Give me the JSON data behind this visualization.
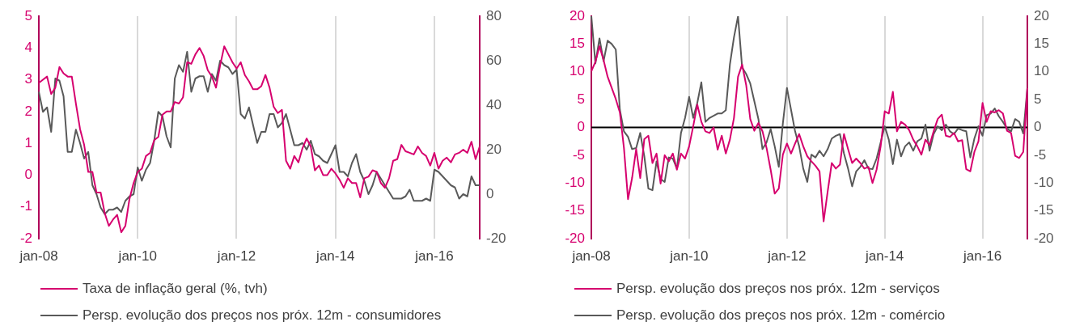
{
  "chart_data": [
    {
      "type": "line",
      "categories": [
        "jan-08",
        null,
        null,
        null,
        null,
        null,
        null,
        null,
        null,
        null,
        null,
        null,
        null,
        null,
        null,
        null,
        null,
        null,
        null,
        null,
        null,
        null,
        null,
        null,
        "jan-10",
        null,
        null,
        null,
        null,
        null,
        null,
        null,
        null,
        null,
        null,
        null,
        null,
        null,
        null,
        null,
        null,
        null,
        null,
        null,
        null,
        null,
        null,
        null,
        "jan-12",
        null,
        null,
        null,
        null,
        null,
        null,
        null,
        null,
        null,
        null,
        null,
        null,
        null,
        null,
        null,
        null,
        null,
        null,
        null,
        null,
        null,
        null,
        null,
        "jan-14",
        null,
        null,
        null,
        null,
        null,
        null,
        null,
        null,
        null,
        null,
        null,
        null,
        null,
        null,
        null,
        null,
        null,
        null,
        null,
        null,
        null,
        null,
        null,
        "jan-16",
        null,
        null,
        null,
        null,
        null,
        null,
        null,
        null,
        null,
        null,
        null
      ],
      "series": [
        {
          "name": "Taxa de inflação geral (%, tvh)",
          "color": "#d6006e",
          "values": [
            2.9,
            3.0,
            3.1,
            2.55,
            2.75,
            3.4,
            3.2,
            3.1,
            3.1,
            2.25,
            1.45,
            0.95,
            0.1,
            0.1,
            -0.55,
            -0.55,
            -1.2,
            -1.6,
            -1.4,
            -1.25,
            -1.8,
            -1.6,
            -0.75,
            -0.25,
            0.1,
            0.2,
            0.6,
            0.7,
            1.1,
            1.2,
            1.9,
            2.0,
            2.0,
            2.3,
            2.25,
            2.45,
            3.55,
            3.5,
            3.8,
            4.0,
            3.75,
            3.3,
            3.1,
            2.75,
            3.45,
            4.05,
            3.8,
            3.55,
            3.35,
            3.55,
            3.15,
            2.95,
            2.7,
            2.7,
            2.8,
            3.15,
            2.75,
            2.15,
            1.95,
            2.05,
            0.45,
            0.2,
            0.6,
            0.4,
            0.85,
            1.15,
            0.9,
            0.15,
            0.3,
            0.0,
            0.0,
            0.2,
            0.05,
            -0.15,
            -0.4,
            -0.1,
            -0.25,
            -0.25,
            -0.7,
            -0.1,
            -0.05,
            0.15,
            0.1,
            -0.25,
            -0.4,
            -0.1,
            0.45,
            0.5,
            0.95,
            0.75,
            0.7,
            0.65,
            0.9,
            0.7,
            0.6,
            0.3,
            0.7,
            0.2,
            0.45,
            0.55,
            0.4,
            0.65,
            0.7,
            0.8,
            0.7,
            1.05,
            0.5,
            0.9
          ]
        },
        {
          "name": "Persp. evolução dos preços nos próx. 12m - consumidores",
          "color": "#595959",
          "axis": "y2",
          "values": [
            46,
            37,
            39,
            28,
            52,
            51,
            44,
            19,
            19,
            29,
            23,
            16,
            19,
            4,
            0,
            -6,
            -9,
            -7,
            -7,
            -6,
            -8,
            -3,
            -1,
            0,
            12,
            6,
            11,
            14,
            24,
            37,
            35,
            26,
            21,
            52,
            58,
            55,
            64,
            46,
            52,
            53,
            53,
            46,
            54,
            51,
            60,
            58,
            57,
            54,
            56,
            36,
            34,
            39,
            31,
            23,
            28,
            28,
            36,
            36,
            30,
            32,
            36,
            29,
            22,
            22,
            23,
            20,
            24,
            18,
            17,
            15,
            14,
            18,
            22,
            10,
            10,
            8,
            14,
            18,
            10,
            6,
            0,
            4,
            10,
            7,
            4,
            1,
            -2,
            -2,
            -2,
            -1,
            2,
            -3,
            -3,
            -3,
            -2,
            -3,
            11,
            10,
            8,
            6,
            4,
            3,
            -2,
            0,
            -1,
            8,
            4,
            4
          ]
        }
      ],
      "ylim": [
        -2,
        5
      ],
      "yticks": [
        -2,
        -1,
        0,
        1,
        2,
        3,
        4,
        5
      ],
      "y2lim": [
        -20,
        80
      ],
      "y2ticks": [
        -20,
        0,
        20,
        40,
        60,
        80
      ],
      "grid": "x",
      "legend": "bottom",
      "marker": "none",
      "line_style": "solid"
    },
    {
      "type": "line",
      "categories": [
        "jan-08",
        null,
        null,
        null,
        null,
        null,
        null,
        null,
        null,
        null,
        null,
        null,
        null,
        null,
        null,
        null,
        null,
        null,
        null,
        null,
        null,
        null,
        null,
        null,
        "jan-10",
        null,
        null,
        null,
        null,
        null,
        null,
        null,
        null,
        null,
        null,
        null,
        null,
        null,
        null,
        null,
        null,
        null,
        null,
        null,
        null,
        null,
        null,
        null,
        "jan-12",
        null,
        null,
        null,
        null,
        null,
        null,
        null,
        null,
        null,
        null,
        null,
        null,
        null,
        null,
        null,
        null,
        null,
        null,
        null,
        null,
        null,
        null,
        null,
        "jan-14",
        null,
        null,
        null,
        null,
        null,
        null,
        null,
        null,
        null,
        null,
        null,
        null,
        null,
        null,
        null,
        null,
        null,
        null,
        null,
        null,
        null,
        null,
        null,
        "jan-16",
        null,
        null,
        null,
        null,
        null,
        null,
        null,
        null,
        null,
        null,
        null
      ],
      "series": [
        {
          "name": "Persp. evolução dos preços nos próx. 12m - serviços",
          "color": "#d6006e",
          "values": [
            10.1,
            11.8,
            14.6,
            12.1,
            9.1,
            7.1,
            5.1,
            2.7,
            -3.7,
            -12.9,
            -9.1,
            -3.9,
            -9.1,
            -2.1,
            -1.5,
            -6.4,
            -4.7,
            -10.1,
            -5,
            -6.1,
            -4.7,
            -7.6,
            -4.7,
            -5.6,
            -3.4,
            0.2,
            4.1,
            1,
            -0.7,
            -1,
            0,
            -4,
            -1.5,
            -4.7,
            -2.2,
            1.7,
            9.1,
            11.3,
            7.6,
            1.5,
            -0.6,
            0.8,
            -0.7,
            -3.7,
            -7.6,
            -11.9,
            -11,
            -4.9,
            -2.9,
            -4.7,
            -2.9,
            -1.2,
            -3.4,
            -5.2,
            -6.1,
            -6.9,
            -7.9,
            -16.9,
            -11.5,
            -6.4,
            -7.4,
            -6.7,
            -1.2,
            -3.9,
            -6.4,
            -5.6,
            -6.4,
            -7.4,
            -7.1,
            -10,
            -7.6,
            -3.4,
            2.9,
            2.5,
            6.4,
            -0.7,
            1,
            0.5,
            -0.5,
            -2.2,
            -3.4,
            -4.9,
            -2.2,
            -3.2,
            -0.7,
            1.5,
            2.3,
            -1.5,
            -1.7,
            -1,
            -2.5,
            -2.3,
            -7.5,
            -7.9,
            -4.4,
            -2.5,
            4.4,
            1,
            2.9,
            2.7,
            3.1,
            2.5,
            -0.6,
            -1,
            -5.1,
            -5.5,
            -4.4,
            7.1
          ]
        },
        {
          "name": "Persp. evolução dos preços nos próx. 12m - comércio",
          "color": "#595959",
          "axis": "y2",
          "values": [
            20,
            11.5,
            16,
            11.9,
            15.6,
            15,
            14,
            3.2,
            -0.7,
            -1.7,
            -3.9,
            -3.7,
            -1,
            -5.2,
            -11,
            -11.3,
            -6.1,
            -9.3,
            -9.8,
            -5.4,
            -5.6,
            -7.4,
            -1,
            1.7,
            5.5,
            1.7,
            4.4,
            8.1,
            1,
            1.7,
            2.1,
            2.5,
            2.5,
            3.1,
            11.3,
            16.2,
            20,
            10.8,
            9.6,
            7.9,
            4.7,
            1.5,
            -3.9,
            -2.7,
            -0.3,
            -3.4,
            -7.1,
            0.7,
            7.1,
            3.2,
            -0.7,
            -3.4,
            -7.4,
            -9.8,
            -4.9,
            -5.4,
            -4.2,
            -5.2,
            -3.9,
            -2,
            -1.5,
            -1.2,
            -4.7,
            -7.4,
            -10.6,
            -7.9,
            -7.1,
            -5.9,
            -7.4,
            -7.5,
            -5.6,
            -2.7,
            0.2,
            -2.2,
            -6.6,
            -2.2,
            -5.2,
            -3.4,
            -2.7,
            -4.2,
            -2.5,
            -2,
            0.5,
            -4.2,
            -1.2,
            0.2,
            -0.5,
            0.5,
            -0.7,
            -1.2,
            -0.2,
            -0.5,
            -0.7,
            -5.4,
            -2,
            0.2,
            -1.5,
            2.2,
            2.5,
            3.4,
            2,
            1,
            -0.2,
            -0.7,
            1.5,
            1,
            -1.1,
            7.1
          ]
        }
      ],
      "ylim": [
        -20,
        20
      ],
      "yticks": [
        -20,
        -15,
        -10,
        -5,
        0,
        5,
        10,
        15,
        20
      ],
      "y2lim": [
        -20,
        20
      ],
      "y2ticks": [
        -20,
        -15,
        -10,
        -5,
        0,
        5,
        10,
        15,
        20
      ],
      "ref_lines": [
        {
          "axis": "y",
          "value": 0,
          "color": "#000000"
        }
      ],
      "grid": "x",
      "legend": "bottom",
      "marker": "none",
      "line_style": "solid"
    }
  ]
}
